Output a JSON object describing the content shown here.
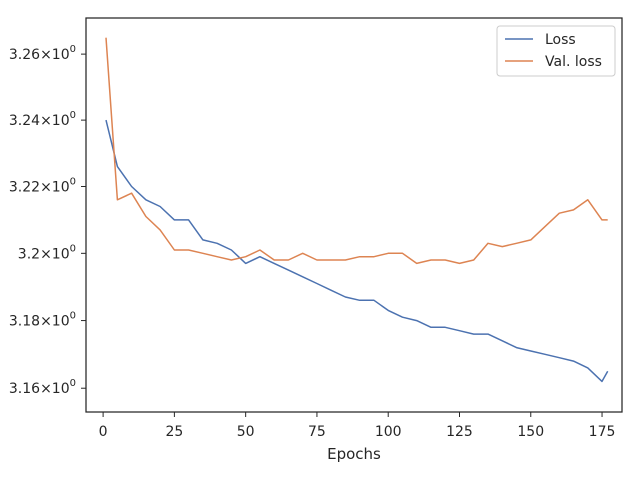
{
  "chart_data": {
    "type": "line",
    "title": "",
    "xlabel": "Epochs",
    "ylabel": "",
    "xlim": [
      -6,
      182
    ],
    "ylim": [
      3.153,
      3.271
    ],
    "yscale": "log",
    "grid": false,
    "legend_position": "top-right",
    "x_ticks": [
      {
        "value": 0,
        "label": "0"
      },
      {
        "value": 25,
        "label": "25"
      },
      {
        "value": 50,
        "label": "50"
      },
      {
        "value": 75,
        "label": "75"
      },
      {
        "value": 100,
        "label": "100"
      },
      {
        "value": 125,
        "label": "125"
      },
      {
        "value": 150,
        "label": "150"
      },
      {
        "value": 175,
        "label": "175"
      }
    ],
    "y_ticks": [
      {
        "value": 3.16,
        "mantissa": "3.16"
      },
      {
        "value": 3.18,
        "mantissa": "3.18"
      },
      {
        "value": 3.2,
        "mantissa": "3.2"
      },
      {
        "value": 3.22,
        "mantissa": "3.22"
      },
      {
        "value": 3.24,
        "mantissa": "3.24"
      },
      {
        "value": 3.26,
        "mantissa": "3.26"
      }
    ],
    "y_tick_suffix": {
      "times": "×",
      "base": "10",
      "exponent": "0"
    },
    "x": [
      1,
      5,
      10,
      15,
      20,
      25,
      30,
      35,
      40,
      45,
      50,
      55,
      60,
      65,
      70,
      75,
      80,
      85,
      90,
      95,
      100,
      105,
      110,
      115,
      120,
      125,
      130,
      135,
      140,
      145,
      150,
      155,
      160,
      165,
      170,
      175,
      177
    ],
    "series": [
      {
        "name": "Loss",
        "color": "#4c72b0",
        "values": [
          3.24,
          3.226,
          3.22,
          3.216,
          3.214,
          3.21,
          3.21,
          3.204,
          3.203,
          3.201,
          3.197,
          3.199,
          3.197,
          3.195,
          3.193,
          3.191,
          3.189,
          3.187,
          3.186,
          3.186,
          3.183,
          3.181,
          3.18,
          3.178,
          3.178,
          3.177,
          3.176,
          3.176,
          3.174,
          3.172,
          3.171,
          3.17,
          3.169,
          3.168,
          3.166,
          3.162,
          3.165
        ]
      },
      {
        "name": "Val. loss",
        "color": "#dd8452",
        "values": [
          3.265,
          3.216,
          3.218,
          3.211,
          3.207,
          3.201,
          3.201,
          3.2,
          3.199,
          3.198,
          3.199,
          3.201,
          3.198,
          3.198,
          3.2,
          3.198,
          3.198,
          3.198,
          3.199,
          3.199,
          3.2,
          3.2,
          3.197,
          3.198,
          3.198,
          3.197,
          3.198,
          3.203,
          3.202,
          3.203,
          3.204,
          3.208,
          3.212,
          3.213,
          3.216,
          3.21,
          3.21
        ]
      }
    ]
  }
}
